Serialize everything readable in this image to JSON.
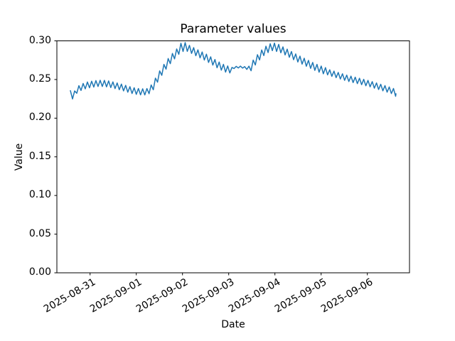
{
  "chart_data": {
    "type": "line",
    "title": "Parameter values",
    "xlabel": "Date",
    "ylabel": "Value",
    "grid": false,
    "legend": "none",
    "colors": {
      "line": "#1f77b4",
      "spine": "#000000",
      "text": "#000000",
      "background": "#ffffff"
    },
    "ylim": [
      0.0,
      0.3
    ],
    "y_ticks": [
      0.0,
      0.05,
      0.1,
      0.15,
      0.2,
      0.25,
      0.3
    ],
    "y_tick_labels": [
      "0.00",
      "0.05",
      "0.10",
      "0.15",
      "0.20",
      "0.25",
      "0.30"
    ],
    "x_tick_labels": [
      "2025-08-31",
      "2025-09-01",
      "2025-09-02",
      "2025-09-03",
      "2025-09-04",
      "2025-09-05",
      "2025-09-06"
    ],
    "x_tick_positions_days": [
      0,
      1,
      2,
      3,
      4,
      5,
      6
    ],
    "x_tick_rotation_deg": 30,
    "xlim_days": [
      -0.7185,
      6.9125
    ],
    "series": [
      {
        "name": "Parameter values",
        "color": "#1f77b4",
        "line_width": 1.5,
        "note": "x_days are day offsets from 2025-08-31 00:00; values are the smoothed trend read off the plot; the plotted curve oscillates around this trend as a triangle wave per 'oscillation'.",
        "x_days": [
          -0.426,
          -0.365,
          -0.288,
          -0.195,
          -0.072,
          0.051,
          0.174,
          0.297,
          0.42,
          0.543,
          0.666,
          0.789,
          0.912,
          1.035,
          1.158,
          1.251,
          1.343,
          1.435,
          1.528,
          1.62,
          1.712,
          1.805,
          1.897,
          1.989,
          2.082,
          2.174,
          2.266,
          2.389,
          2.512,
          2.635,
          2.758,
          2.882,
          3.005,
          3.097,
          3.189,
          3.282,
          3.374,
          3.435,
          3.497,
          3.589,
          3.682,
          3.774,
          3.866,
          3.958,
          4.082,
          4.205,
          4.328,
          4.451,
          4.574,
          4.697,
          4.82,
          4.943,
          5.066,
          5.189,
          5.312,
          5.435,
          5.558,
          5.682,
          5.805,
          5.928,
          6.051,
          6.174,
          6.297,
          6.42,
          6.512,
          6.574,
          6.62
        ],
        "values": [
          0.2316,
          0.2279,
          0.2362,
          0.2399,
          0.2426,
          0.244,
          0.245,
          0.245,
          0.244,
          0.2422,
          0.2403,
          0.2381,
          0.2358,
          0.2344,
          0.2339,
          0.2344,
          0.239,
          0.2491,
          0.2583,
          0.2665,
          0.2739,
          0.2803,
          0.2859,
          0.2925,
          0.2915,
          0.289,
          0.2859,
          0.2822,
          0.2785,
          0.2739,
          0.2693,
          0.2652,
          0.2624,
          0.2652,
          0.2661,
          0.2661,
          0.2652,
          0.262,
          0.2675,
          0.2748,
          0.2813,
          0.2868,
          0.2904,
          0.2927,
          0.2904,
          0.2868,
          0.2827,
          0.2785,
          0.2748,
          0.2711,
          0.2675,
          0.2642,
          0.2615,
          0.2587,
          0.2564,
          0.2541,
          0.2518,
          0.25,
          0.2482,
          0.2463,
          0.2445,
          0.2422,
          0.2399,
          0.2376,
          0.2358,
          0.2344,
          0.2316
        ],
        "oscillation": {
          "waveform": "triangle",
          "period_days": 0.092,
          "amplitude_segments": [
            [
              -0.43,
              1.28,
              0.004
            ],
            [
              1.28,
              1.93,
              0.005
            ],
            [
              1.93,
              2.1,
              0.006
            ],
            [
              2.1,
              3.05,
              0.0045
            ],
            [
              3.05,
              3.4,
              0.0012
            ],
            [
              3.4,
              4.12,
              0.005
            ],
            [
              4.12,
              5.1,
              0.0045
            ],
            [
              5.1,
              6.63,
              0.0038
            ]
          ]
        }
      }
    ]
  }
}
